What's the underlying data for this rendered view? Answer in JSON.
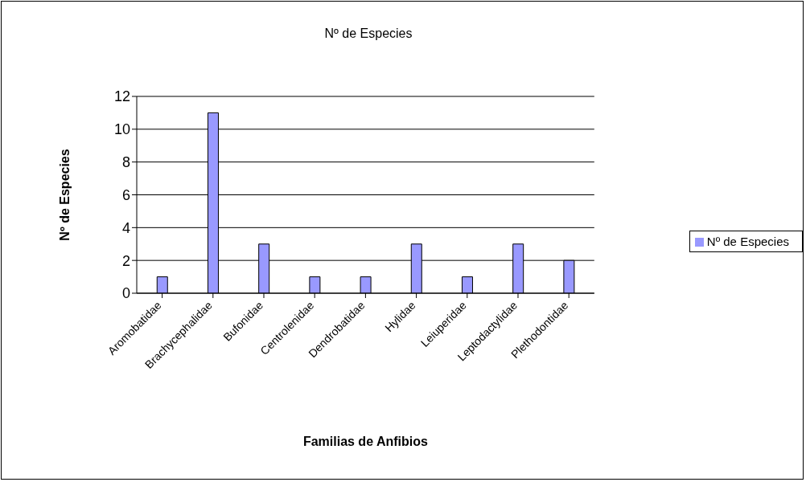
{
  "chart_data": {
    "type": "bar",
    "title": "Nº de Especies",
    "xlabel": "Familias de Anfibios",
    "ylabel": "Nº de Especies",
    "categories": [
      "Aromobatidae",
      "Brachycephalidae",
      "Bufonidae",
      "Centrolenidae",
      "Dendrobatidae",
      "Hylidae",
      "Leiuperidae",
      "Leptodactylidae",
      "Plethodontidae"
    ],
    "series": [
      {
        "name": "Nº de Especies",
        "color": "#9999ff",
        "values": [
          1,
          11,
          3,
          1,
          1,
          3,
          1,
          3,
          2
        ]
      }
    ],
    "ylim": [
      0,
      12
    ],
    "yticks": [
      0,
      2,
      4,
      6,
      8,
      10,
      12
    ],
    "grid": "y",
    "legend": "right"
  }
}
